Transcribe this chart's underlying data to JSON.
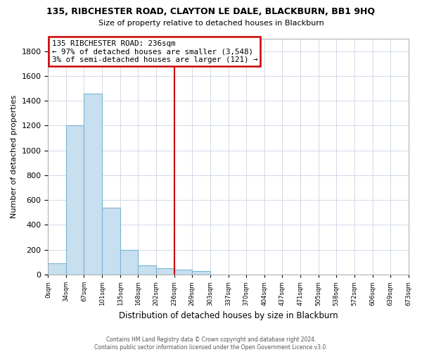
{
  "title_line1": "135, RIBCHESTER ROAD, CLAYTON LE DALE, BLACKBURN, BB1 9HQ",
  "title_line2": "Size of property relative to detached houses in Blackburn",
  "xlabel": "Distribution of detached houses by size in Blackburn",
  "ylabel": "Number of detached properties",
  "bar_edges": [
    0,
    34,
    67,
    101,
    135,
    168,
    202,
    236,
    269,
    303,
    337,
    370,
    404,
    437,
    471,
    505,
    538,
    572,
    606,
    639,
    673
  ],
  "bar_heights": [
    90,
    1200,
    1460,
    540,
    200,
    70,
    50,
    40,
    28,
    0,
    0,
    0,
    0,
    0,
    0,
    0,
    0,
    0,
    0,
    0
  ],
  "bar_color": "#c8dff0",
  "bar_edgecolor": "#7ab4d4",
  "vline_x": 236,
  "vline_color": "#cc0000",
  "annotation_title": "135 RIBCHESTER ROAD: 236sqm",
  "annotation_line1": "← 97% of detached houses are smaller (3,548)",
  "annotation_line2": "3% of semi-detached houses are larger (121) →",
  "annotation_box_color": "white",
  "annotation_box_edgecolor": "#cc0000",
  "xlim": [
    0,
    673
  ],
  "ylim": [
    0,
    1900
  ],
  "yticks": [
    0,
    200,
    400,
    600,
    800,
    1000,
    1200,
    1400,
    1600,
    1800
  ],
  "xtick_labels": [
    "0sqm",
    "34sqm",
    "67sqm",
    "101sqm",
    "135sqm",
    "168sqm",
    "202sqm",
    "236sqm",
    "269sqm",
    "303sqm",
    "337sqm",
    "370sqm",
    "404sqm",
    "437sqm",
    "471sqm",
    "505sqm",
    "538sqm",
    "572sqm",
    "606sqm",
    "639sqm",
    "673sqm"
  ],
  "xtick_positions": [
    0,
    34,
    67,
    101,
    135,
    168,
    202,
    236,
    269,
    303,
    337,
    370,
    404,
    437,
    471,
    505,
    538,
    572,
    606,
    639,
    673
  ],
  "footer_line1": "Contains HM Land Registry data © Crown copyright and database right 2024.",
  "footer_line2": "Contains public sector information licensed under the Open Government Licence v3.0.",
  "background_color": "#ffffff",
  "grid_color": "#d0d8e8"
}
